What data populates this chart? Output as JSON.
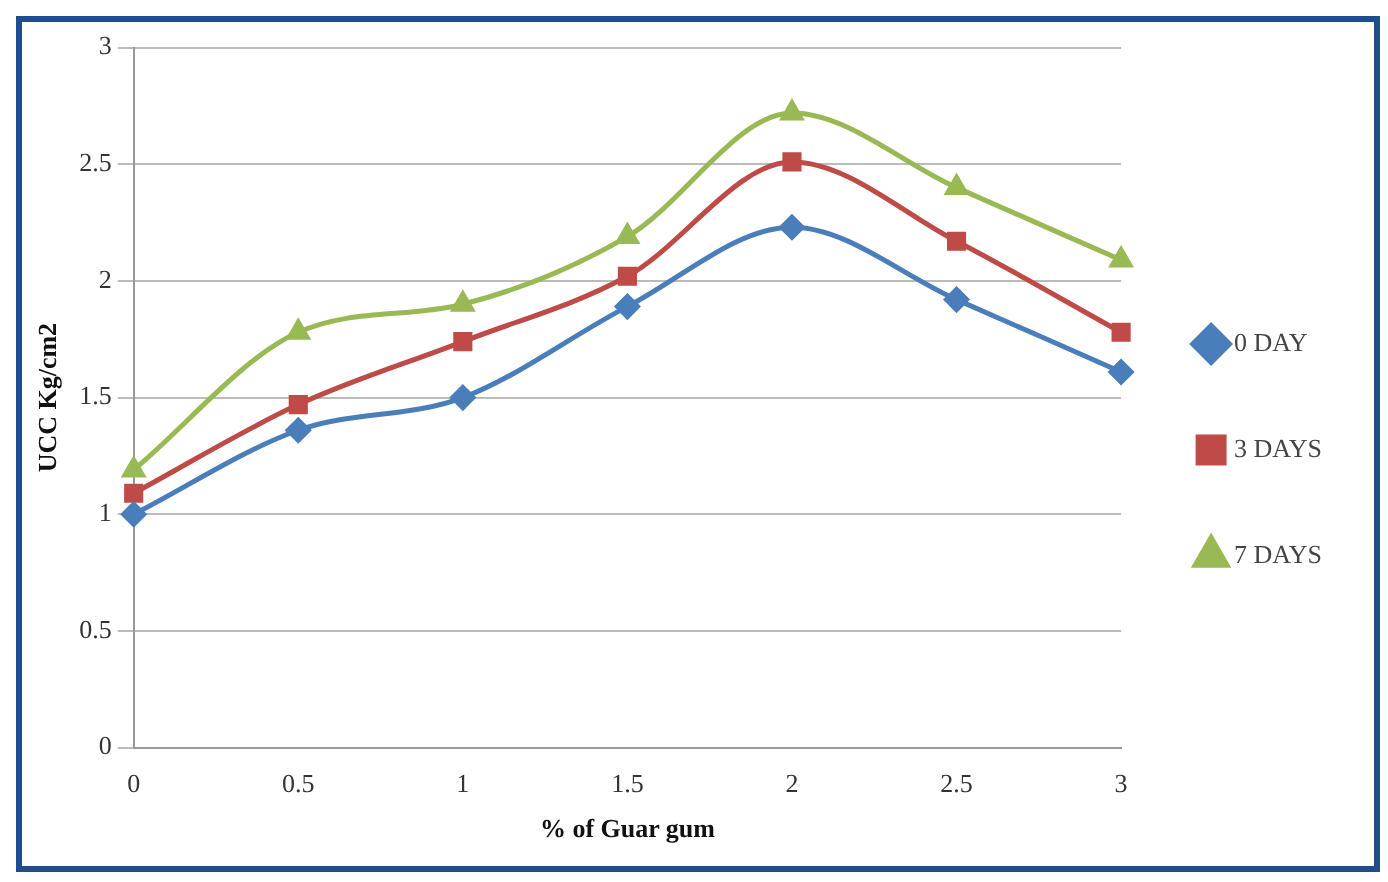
{
  "chart_data": {
    "type": "line",
    "xlabel": "% of Guar gum",
    "ylabel": "UCC Kg/cm2",
    "categories": [
      "0",
      "0.5",
      "1",
      "1.5",
      "2",
      "2.5",
      "3"
    ],
    "series": [
      {
        "name": "0 DAY",
        "color": "#4a7ebb",
        "marker": "diamond",
        "values": [
          1.0,
          1.36,
          1.5,
          1.89,
          2.23,
          1.92,
          1.61
        ]
      },
      {
        "name": "3 DAYS",
        "color": "#be4b48",
        "marker": "square",
        "values": [
          1.09,
          1.47,
          1.74,
          2.02,
          2.51,
          2.17,
          1.78
        ]
      },
      {
        "name": "7 DAYS",
        "color": "#98b954",
        "marker": "triangle",
        "values": [
          1.19,
          1.78,
          1.9,
          2.19,
          2.72,
          2.4,
          2.09
        ]
      }
    ],
    "ylim": [
      0,
      3
    ],
    "yticks": [
      0,
      0.5,
      1,
      1.5,
      2,
      2.5,
      3
    ],
    "grid": "y",
    "legend": "right"
  }
}
